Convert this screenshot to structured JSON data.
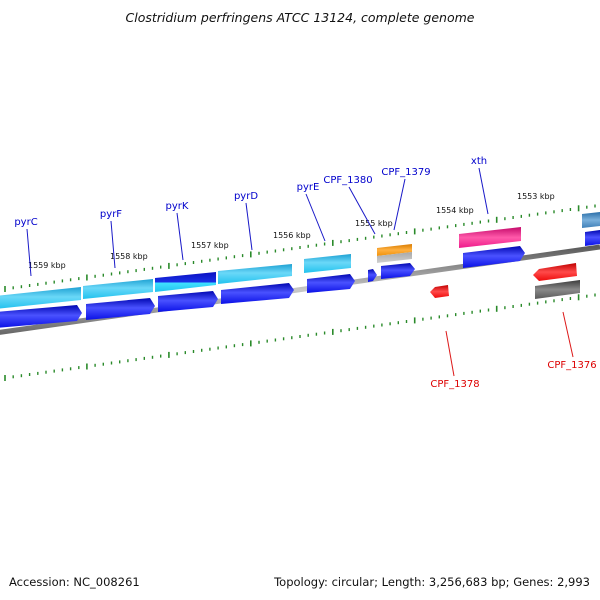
{
  "title": "Clostridium perfringens ATCC 13124, complete genome",
  "footer": {
    "accession": "Accession: NC_008261",
    "summary": "Topology: circular; Length: 3,256,683 bp; Genes: 2,993"
  },
  "colors": {
    "forward_label": "#0000cc",
    "reverse_label": "#dd0000",
    "backbone": "#8a8a8a",
    "tick": "#2a8a2a",
    "cds_blue": "#0a10e6",
    "cyan": "#22c2ee",
    "orange": "#f0920a",
    "magenta": "#ee1a8a",
    "red": "#ee0a0a",
    "gray": "#5a5a5a",
    "steel": "#3f80b8"
  },
  "scale": {
    "unit": "kbp",
    "ticks": [
      "1559 kbp",
      "1558 kbp",
      "1557 kbp",
      "1556 kbp",
      "1555 kbp",
      "1554 kbp",
      "1553 kbp"
    ]
  },
  "genes": [
    {
      "name": "pyrC",
      "strand": "forward"
    },
    {
      "name": "pyrF",
      "strand": "forward"
    },
    {
      "name": "pyrK",
      "strand": "forward"
    },
    {
      "name": "pyrD",
      "strand": "forward"
    },
    {
      "name": "pyrE",
      "strand": "forward"
    },
    {
      "name": "CPF_1380",
      "strand": "forward"
    },
    {
      "name": "CPF_1379",
      "strand": "forward"
    },
    {
      "name": "xth",
      "strand": "forward"
    },
    {
      "name": "CPF_1378",
      "strand": "reverse"
    },
    {
      "name": "CPF_1376",
      "strand": "reverse"
    }
  ]
}
